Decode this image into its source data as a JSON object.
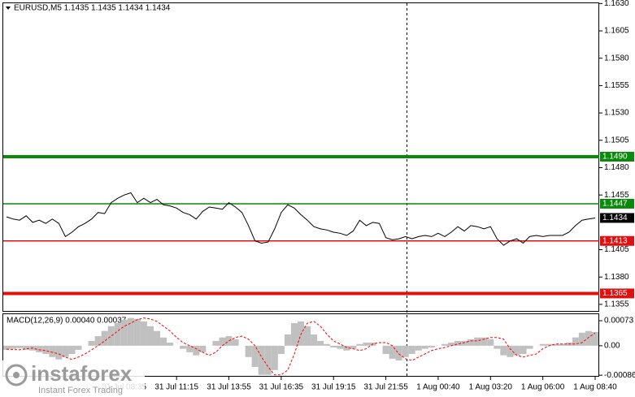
{
  "chart_data": [
    {
      "type": "line",
      "title": "EURUSD,M5  1.1435 1.1435 1.1434 1.1434",
      "color": "#000000",
      "categories": [
        null,
        null,
        null,
        null,
        null,
        null,
        null,
        null,
        null,
        null,
        null,
        null,
        null,
        null,
        null,
        null,
        null,
        null,
        "31 Jul 08:35",
        null,
        null,
        null,
        null,
        null,
        null,
        null,
        "31 Jul 11:15",
        null,
        null,
        null,
        null,
        null,
        null,
        null,
        "31 Jul 13:55",
        null,
        null,
        null,
        null,
        null,
        null,
        null,
        "31 Jul 16:35",
        null,
        null,
        null,
        null,
        null,
        null,
        null,
        "31 Jul 19:15",
        null,
        null,
        null,
        null,
        null,
        null,
        null,
        "31 Jul 21:55",
        null,
        null,
        null,
        null,
        null,
        null,
        null,
        "1 Aug 00:40",
        null,
        null,
        null,
        null,
        null,
        null,
        null,
        "1 Aug 03:20",
        null,
        null,
        null,
        null,
        null,
        null,
        null,
        "1 Aug 06:00",
        null,
        null,
        null,
        null,
        null,
        null,
        null,
        "1 Aug 08:40"
      ],
      "values": [
        1.1435,
        1.1433,
        1.1432,
        1.1436,
        1.143,
        1.1432,
        1.1429,
        1.1433,
        1.1429,
        1.1417,
        1.1421,
        1.1426,
        1.1429,
        1.1433,
        1.1439,
        1.1438,
        1.1448,
        1.1452,
        1.1455,
        1.1457,
        1.1448,
        1.1452,
        1.1448,
        1.1451,
        1.1446,
        1.1445,
        1.1443,
        1.1439,
        1.1437,
        1.1433,
        1.144,
        1.1444,
        1.1443,
        1.1442,
        1.1448,
        1.1444,
        1.1439,
        1.1427,
        1.1413,
        1.1411,
        1.1412,
        1.1424,
        1.1439,
        1.1446,
        1.1443,
        1.1437,
        1.1432,
        1.1426,
        1.1424,
        1.1423,
        1.1421,
        1.142,
        1.1418,
        1.1422,
        1.1432,
        1.1427,
        1.143,
        1.1429,
        1.1416,
        1.1414,
        1.1415,
        1.1417,
        1.1415,
        1.1417,
        1.1418,
        1.1417,
        1.142,
        1.1417,
        1.1421,
        1.1426,
        1.1422,
        1.1427,
        1.1426,
        1.1424,
        1.1426,
        1.1415,
        1.1409,
        1.1413,
        1.1415,
        1.1411,
        1.1417,
        1.1418,
        1.1417,
        1.1418,
        1.1418,
        1.1418,
        1.1421,
        1.1427,
        1.1432,
        1.1433,
        1.1434
      ],
      "ylim": [
        1.1349,
        1.1631
      ],
      "yticks": [
        {
          "value": 1.163,
          "label": "1.1630"
        },
        1.1605,
        {
          "value": 1.158,
          "label": "1.1580"
        },
        1.1555,
        {
          "value": 1.153,
          "label": "1.1530"
        },
        1.1505,
        {
          "value": 1.148,
          "label": "1.1480"
        },
        1.1455,
        1.1405,
        {
          "value": 1.138,
          "label": "1.1380"
        },
        1.1355
      ],
      "levels": [
        {
          "value": 1.149,
          "label": "1.1490",
          "color": "#0a8a0a",
          "weight": "thick"
        },
        {
          "value": 1.1447,
          "label": "1.1447",
          "color": "#0a8a0a",
          "weight": "thin"
        },
        {
          "value": 1.1413,
          "label": "1.1413",
          "color": "#e01010",
          "weight": "thin"
        },
        {
          "value": 1.1365,
          "label": "1.1365",
          "color": "#e01010",
          "weight": "thick"
        }
      ],
      "last_price": 1.1434
    },
    {
      "type": "macd",
      "title": "MACD(12,26,9) 0.00040 0.00037",
      "ylim": [
        -0.00088,
        0.00092
      ],
      "yticks": [
        0.00073,
        {
          "value": 0,
          "label": "0.00"
        },
        -0.00086
      ],
      "series": [
        {
          "color": "#c0c0c0",
          "style": "histogram",
          "values": [
            -0.00012,
            -9e-05,
            -7e-05,
            -0.00012,
            -0.00014,
            -0.00019,
            -0.00024,
            -0.00033,
            -0.0004,
            -0.00033,
            -0.00024,
            -0.00012,
            0,
            0.00014,
            0.00028,
            0.00043,
            0.00057,
            0.00066,
            0.00076,
            0.00081,
            0.00078,
            0.00071,
            0.00057,
            0.00043,
            0.00024,
            9e-05,
            0,
            -9e-05,
            -0.00019,
            -0.00028,
            -0.00019,
            0,
            0.00014,
            0.00024,
            0.00028,
            0.00019,
            0,
            -0.00033,
            -0.00062,
            -0.00085,
            -0.00085,
            -0.00071,
            -0.00024,
            0.00033,
            0.00066,
            0.00071,
            0.00057,
            0.00033,
            0.00014,
            5e-05,
            -5e-05,
            -9e-05,
            -0.00014,
            -9e-05,
            5e-05,
            9e-05,
            9e-05,
            0,
            -0.00024,
            -0.00038,
            -0.00043,
            -0.00033,
            -0.00024,
            -0.00014,
            -9e-05,
            -5e-05,
            0,
            5e-05,
            9e-05,
            0.00014,
            0.00014,
            0.00019,
            0.00024,
            0.00024,
            0.00019,
            -9e-05,
            -0.00028,
            -0.00033,
            -0.00028,
            -0.00024,
            -9e-05,
            0,
            5e-05,
            5e-05,
            5e-05,
            5e-05,
            9e-05,
            0.00024,
            0.00038,
            0.00043,
            0.0004
          ]
        },
        {
          "color": "#ff0000",
          "style": "dashed",
          "values": [
            -0.0001,
            -0.00011,
            -0.00012,
            -9e-05,
            -7e-05,
            -0.00012,
            -0.00014,
            -0.00019,
            -0.00024,
            -0.00033,
            -0.0004,
            -0.00033,
            -0.00024,
            -0.00012,
            0,
            0.00014,
            0.00028,
            0.00043,
            0.00057,
            0.00066,
            0.00076,
            0.00081,
            0.00078,
            0.00071,
            0.00057,
            0.00043,
            0.00024,
            9e-05,
            0,
            -9e-05,
            -0.00019,
            -0.00028,
            -0.00019,
            0,
            0.00014,
            0.00024,
            0.00028,
            0.00019,
            0,
            -0.00033,
            -0.00062,
            -0.00085,
            -0.00085,
            -0.00071,
            -0.00024,
            0.00033,
            0.00066,
            0.00071,
            0.00057,
            0.00033,
            0.00014,
            5e-05,
            -5e-05,
            -9e-05,
            -0.00014,
            -9e-05,
            5e-05,
            9e-05,
            9e-05,
            0,
            -0.00024,
            -0.00038,
            -0.00043,
            -0.00033,
            -0.00024,
            -0.00014,
            -9e-05,
            -5e-05,
            0,
            5e-05,
            9e-05,
            0.00014,
            0.00014,
            0.00019,
            0.00024,
            0.00024,
            0.00019,
            -9e-05,
            -0.00028,
            -0.00033,
            -0.00028,
            -0.00024,
            -9e-05,
            0,
            5e-05,
            5e-05,
            5e-05,
            5e-05,
            9e-05,
            0.00024,
            0.00037
          ]
        }
      ]
    }
  ],
  "watermark": {
    "brand": "instaforex",
    "tagline": "Instant Forex Trading"
  }
}
